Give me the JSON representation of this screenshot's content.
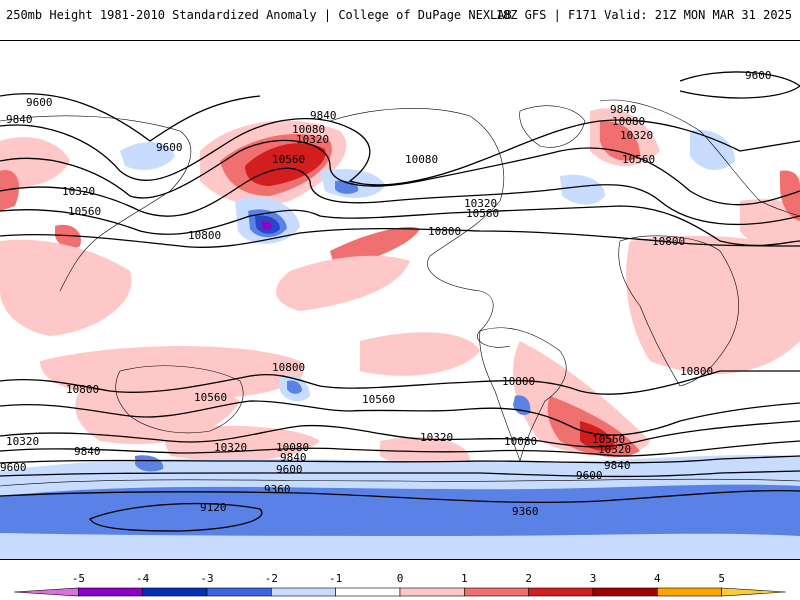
{
  "header": {
    "left": "250mb Height 1981-2010 Standardized Anomaly | College of DuPage NEXLAB",
    "right": "18Z GFS | F171 Valid: 21Z MON MAR 31 2025"
  },
  "contour_labels": [
    "9600",
    "9840",
    "10080",
    "10320",
    "10560",
    "10800",
    "9360",
    "9120"
  ],
  "colorbar": {
    "ticks": [
      "-5",
      "-4",
      "-3",
      "-2",
      "-1",
      "0",
      "1",
      "2",
      "3",
      "4",
      "5"
    ],
    "colors": [
      "#e070e0",
      "#8c00c8",
      "#0030b4",
      "#3c64dc",
      "#c8dcff",
      "#ffffff",
      "#ffc8c8",
      "#f07070",
      "#d21e1e",
      "#a00000",
      "#ffa500",
      "#ffcc33"
    ]
  },
  "colors": {
    "contour": "#000000",
    "coast": "#000000",
    "neg1": "#c8dcff",
    "neg2": "#5a82e6",
    "neg3": "#2846c8",
    "neg4": "#8c00c8",
    "pos1": "#ffc8c8",
    "pos2": "#f07070",
    "pos3": "#d21e1e",
    "pos4": "#a00000"
  }
}
